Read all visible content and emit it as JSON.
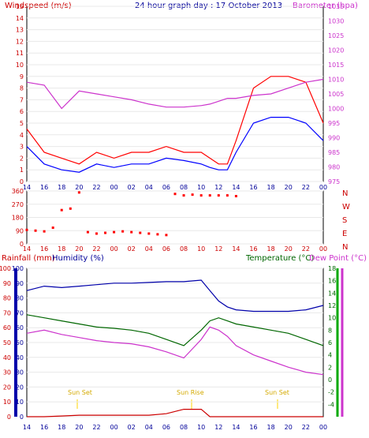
{
  "page": {
    "title": "24 hour graph day : 17 October 2013",
    "x_tick_labels": [
      "14",
      "16",
      "18",
      "20",
      "22",
      "00",
      "02",
      "04",
      "06",
      "08",
      "10",
      "12",
      "14",
      "16",
      "18",
      "20",
      "22",
      "00"
    ]
  },
  "colors": {
    "wind_gust": "#ff0000",
    "wind_avg": "#0000ff",
    "barometer": "#cc33cc",
    "direction": "#ff0000",
    "humidity": "#0000aa",
    "temperature": "#006600",
    "dew_point": "#cc33cc",
    "rainfall": "#cc0000",
    "sun_marker": "#ffd400",
    "frame": "#000000"
  },
  "chart_data": [
    {
      "type": "line",
      "left_axis_label": "Windspeed (m/s)",
      "right_axis_label": "Barometer (hpa)",
      "ylim_left": [
        0,
        15
      ],
      "ylim_right": [
        975,
        1035
      ],
      "y_left_ticks": [
        0,
        1,
        2,
        3,
        4,
        5,
        6,
        7,
        8,
        9,
        10,
        11,
        12,
        13,
        14,
        15
      ],
      "y_right_ticks": [
        975,
        980,
        985,
        990,
        995,
        1000,
        1005,
        1010,
        1015,
        1020,
        1025,
        1030,
        1035
      ],
      "x_hours": [
        0,
        2,
        4,
        6,
        8,
        10,
        12,
        14,
        16,
        18,
        20,
        21,
        22,
        23,
        24,
        26,
        28,
        30,
        32,
        34
      ],
      "series": [
        {
          "name": "gust",
          "axis": "left",
          "values": [
            4.5,
            2.5,
            2,
            1.5,
            2.5,
            2,
            2.5,
            2.5,
            3,
            2.5,
            2.5,
            2,
            1.5,
            1.5,
            3.5,
            8,
            9,
            9,
            8.5,
            5
          ]
        },
        {
          "name": "average",
          "axis": "left",
          "values": [
            3,
            1.5,
            1,
            0.8,
            1.5,
            1.2,
            1.5,
            1.5,
            2,
            1.8,
            1.5,
            1.2,
            1,
            1,
            2.5,
            5,
            5.5,
            5.5,
            5,
            3.5
          ]
        },
        {
          "name": "barometer",
          "axis": "right",
          "values": [
            1009,
            1008,
            1000,
            1006,
            1005,
            1004,
            1003,
            1001.5,
            1000.5,
            1000.5,
            1001,
            1001.5,
            1002.5,
            1003.5,
            1003.5,
            1004.5,
            1005,
            1007,
            1009,
            1010
          ]
        }
      ]
    },
    {
      "type": "scatter",
      "right_axis_labels": [
        "N",
        "W",
        "S",
        "E",
        "N"
      ],
      "ylim": [
        0,
        360
      ],
      "y_ticks": [
        0,
        90,
        180,
        270,
        360
      ],
      "x_hours": [
        0,
        1,
        2,
        3,
        4,
        5,
        6,
        7,
        8,
        9,
        10,
        11,
        12,
        13,
        14,
        15,
        16,
        17,
        18,
        19,
        20,
        21,
        22,
        23,
        24
      ],
      "values": [
        95,
        90,
        85,
        110,
        230,
        240,
        350,
        80,
        70,
        75,
        80,
        85,
        80,
        75,
        70,
        65,
        60,
        340,
        330,
        335,
        330,
        330,
        330,
        330,
        325
      ]
    },
    {
      "type": "line",
      "left_axis_label": "Rainfall (mm)",
      "left_axis_label_2": "Humidity (%)",
      "right_axis_label": "Temperature (°C)",
      "right_axis_label_2": "Dew Point (°C)",
      "ylim_left": [
        0,
        100
      ],
      "ylim_right": [
        -6,
        18
      ],
      "y_left_ticks": [
        0,
        10,
        20,
        30,
        40,
        50,
        60,
        70,
        80,
        90,
        100
      ],
      "y_right_ticks": [
        -4,
        -2,
        0,
        2,
        4,
        6,
        8,
        10,
        12,
        14,
        16,
        18
      ],
      "x_hours": [
        0,
        2,
        4,
        6,
        8,
        10,
        12,
        14,
        16,
        18,
        20,
        21,
        22,
        23,
        24,
        26,
        28,
        30,
        32,
        34
      ],
      "series": [
        {
          "name": "humidity",
          "axis": "left",
          "values": [
            85,
            88,
            87,
            88,
            89,
            90,
            90,
            90.5,
            91,
            91,
            92,
            85,
            78,
            74,
            72,
            71,
            71,
            71,
            72,
            75
          ]
        },
        {
          "name": "temperature",
          "axis": "right",
          "values": [
            10.5,
            10,
            9.5,
            9,
            8.5,
            8.3,
            8,
            7.5,
            6.5,
            5.5,
            8,
            9.5,
            10,
            9.5,
            9,
            8.5,
            8,
            7.5,
            6.5,
            5.5
          ]
        },
        {
          "name": "dew_point",
          "axis": "right",
          "values": [
            7.5,
            8,
            7.3,
            6.8,
            6.3,
            6,
            5.8,
            5.3,
            4.5,
            3.5,
            6.5,
            8.5,
            8,
            7,
            5.5,
            4,
            3,
            2,
            1.2,
            0.8
          ]
        },
        {
          "name": "rainfall",
          "axis": "left",
          "values": [
            0,
            0,
            0.5,
            1,
            1,
            1,
            1,
            1,
            2,
            5,
            5,
            0,
            0,
            0,
            0,
            0,
            0,
            0,
            0,
            0
          ]
        }
      ],
      "annotations": [
        "Sun Set",
        "Sun Rise",
        "Sun Set"
      ]
    }
  ]
}
